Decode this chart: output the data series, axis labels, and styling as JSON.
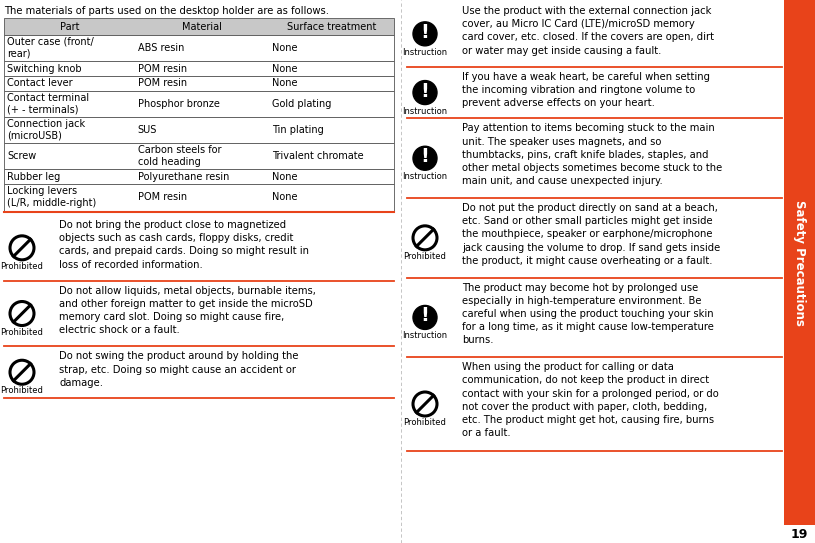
{
  "page_number": "19",
  "sidebar_title": "Safety Precautions",
  "sidebar_color": "#E8431A",
  "sidebar_text_color": "#FFFFFF",
  "background_color": "#FFFFFF",
  "divider_color": "#E8431A",
  "table_header_bg": "#C8C8C8",
  "table_border_color": "#555555",
  "table_title": "The materials of parts used on the desktop holder are as follows.",
  "table_headers": [
    "Part",
    "Material",
    "Surface treatment"
  ],
  "table_rows": [
    [
      "Outer case (front/\nrear)",
      "ABS resin",
      "None"
    ],
    [
      "Switching knob",
      "POM resin",
      "None"
    ],
    [
      "Contact lever",
      "POM resin",
      "None"
    ],
    [
      "Contact terminal\n(+ - terminals)",
      "Phosphor bronze",
      "Gold plating"
    ],
    [
      "Connection jack\n(microUSB)",
      "SUS",
      "Tin plating"
    ],
    [
      "Screw",
      "Carbon steels for\ncold heading",
      "Trivalent chromate"
    ],
    [
      "Rubber leg",
      "Polyurethane resin",
      "None"
    ],
    [
      "Locking levers\n(L/R, middle-right)",
      "POM resin",
      "None"
    ]
  ],
  "left_entries": [
    {
      "type": "Prohibited",
      "text": "Do not bring the product close to magnetized\nobjects such as cash cards, floppy disks, credit\ncards, and prepaid cards. Doing so might result in\nloss of recorded information."
    },
    {
      "type": "Prohibited",
      "text": "Do not allow liquids, metal objects, burnable items,\nand other foreign matter to get inside the microSD\nmemory card slot. Doing so might cause fire,\nelectric shock or a fault."
    },
    {
      "type": "Prohibited",
      "text": "Do not swing the product around by holding the\nstrap, etc. Doing so might cause an accident or\ndamage."
    }
  ],
  "right_entries": [
    {
      "type": "Instruction",
      "text": "Use the product with the external connection jack\ncover, au Micro IC Card (LTE)/microSD memory\ncard cover, etc. closed. If the covers are open, dirt\nor water may get inside causing a fault."
    },
    {
      "type": "Instruction",
      "text": "If you have a weak heart, be careful when setting\nthe incoming vibration and ringtone volume to\nprevent adverse effects on your heart."
    },
    {
      "type": "Instruction",
      "text": "Pay attention to items becoming stuck to the main\nunit. The speaker uses magnets, and so\nthumbtacks, pins, craft knife blades, staples, and\nother metal objects sometimes become stuck to the\nmain unit, and cause unexpected injury."
    },
    {
      "type": "Prohibited",
      "text": "Do not put the product directly on sand at a beach,\netc. Sand or other small particles might get inside\nthe mouthpiece, speaker or earphone/microphone\njack causing the volume to drop. If sand gets inside\nthe product, it might cause overheating or a fault."
    },
    {
      "type": "Instruction",
      "text": "The product may become hot by prolonged use\nespecially in high-temperature environment. Be\ncareful when using the product touching your skin\nfor a long time, as it might cause low-temperature\nburns."
    },
    {
      "type": "Prohibited",
      "text": "When using the product for calling or data\ncommunication, do not keep the product in direct\ncontact with your skin for a prolonged period, or do\nnot cover the product with paper, cloth, bedding,\netc. The product might get hot, causing fire, burns\nor a fault."
    }
  ],
  "font_size_body": 7.2,
  "font_size_table": 7.0,
  "font_size_label": 6.0,
  "font_size_page_num": 9,
  "font_size_sidebar": 8.5,
  "col_ratios": [
    0.335,
    0.345,
    0.32
  ]
}
